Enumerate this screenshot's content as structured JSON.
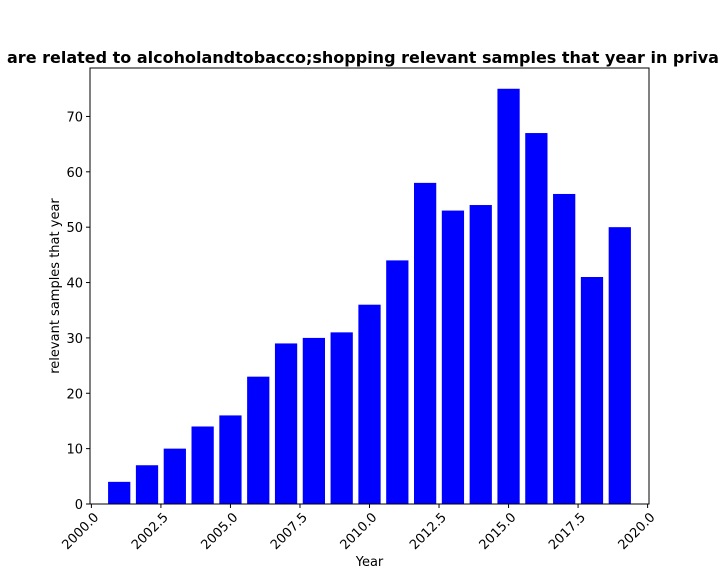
{
  "chart_data": {
    "type": "bar",
    "title": "are related to alcoholandtobacco;shopping relevant samples that year in priva",
    "xlabel": "Year",
    "ylabel": "relevant samples that year",
    "x": [
      2001,
      2002,
      2003,
      2004,
      2005,
      2006,
      2007,
      2008,
      2009,
      2010,
      2011,
      2012,
      2013,
      2014,
      2015,
      2016,
      2017,
      2018,
      2019
    ],
    "values": [
      4,
      7,
      10,
      14,
      16,
      23,
      29,
      30,
      31,
      36,
      44,
      58,
      53,
      54,
      75,
      67,
      56,
      41,
      50
    ],
    "xlim": [
      1999.95,
      2020.05
    ],
    "ylim": [
      0,
      78.75
    ],
    "xticks": [
      2000.0,
      2002.5,
      2005.0,
      2007.5,
      2010.0,
      2012.5,
      2015.0,
      2017.5,
      2020.0
    ],
    "xtick_labels": [
      "2000.0",
      "2002.5",
      "2005.0",
      "2007.5",
      "2010.0",
      "2012.5",
      "2015.0",
      "2017.5",
      "2020.0"
    ],
    "yticks": [
      0,
      10,
      20,
      30,
      40,
      50,
      60,
      70
    ],
    "ytick_labels": [
      "0",
      "10",
      "20",
      "30",
      "40",
      "50",
      "60",
      "70"
    ],
    "bar_width": 0.8,
    "bar_color": "#0000ff",
    "grid": false,
    "legend": "none"
  }
}
